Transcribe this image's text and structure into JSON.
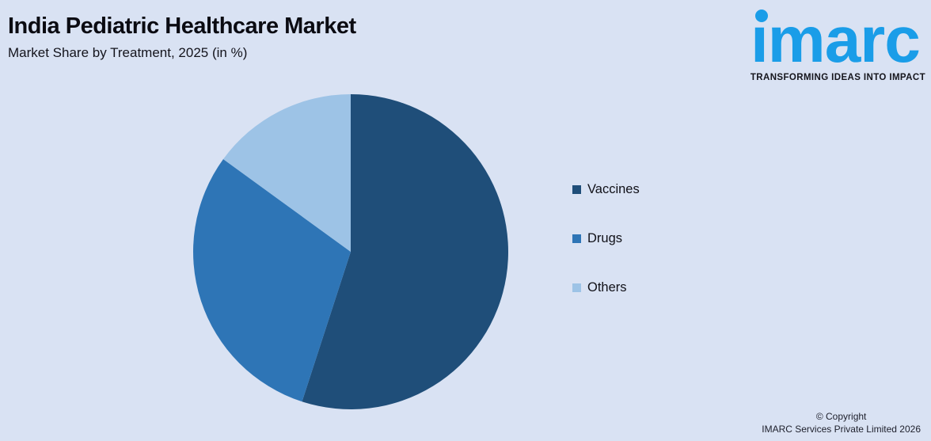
{
  "header": {
    "title": "India Pediatric Healthcare Market",
    "subtitle": "Market Share by Treatment, 2025 (in %)"
  },
  "logo": {
    "brand_text": "ımarc",
    "tagline": "TRANSFORMING IDEAS INTO IMPACT",
    "brand_color": "#1A9DE8",
    "tagline_color": "#15151c"
  },
  "chart_data": {
    "type": "pie",
    "title": "India Pediatric Healthcare Market",
    "subtitle": "Market Share by Treatment, 2025 (in %)",
    "categories": [
      "Vaccines",
      "Drugs",
      "Others"
    ],
    "values": [
      55,
      30,
      15
    ],
    "colors": [
      "#1F4E79",
      "#2E75B6",
      "#9DC3E6"
    ],
    "start_angle_deg": 0,
    "direction": "clockwise",
    "legend_position": "right",
    "data_labels": false
  },
  "footer": {
    "line1": "© Copyright",
    "line2": "IMARC Services Private Limited 2026"
  },
  "colors": {
    "background": "#D9E2F3"
  }
}
